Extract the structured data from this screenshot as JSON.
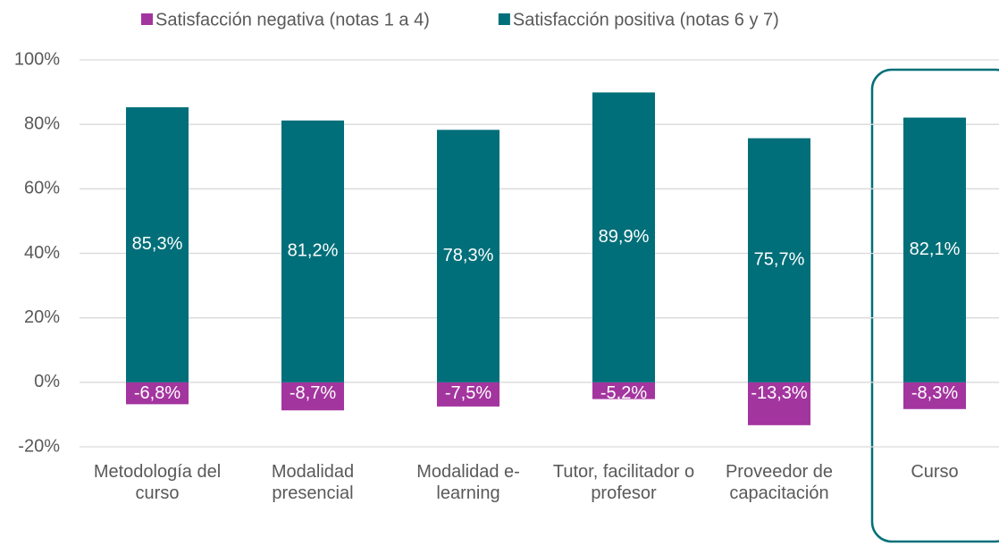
{
  "chart_data": {
    "type": "bar",
    "categories": [
      "Metodología del curso",
      "Modalidad presencial",
      "Modalidad e-learning",
      "Tutor, facilitador o profesor",
      "Proveedor de capacitación",
      "Curso"
    ],
    "series": [
      {
        "name": "Satisfacción negativa (notas 1 a 4)",
        "color": "#a3359f",
        "values": [
          -6.8,
          -8.7,
          -7.5,
          -5.2,
          -13.3,
          -8.3
        ],
        "value_labels": [
          "-6,8%",
          "-8,7%",
          "-7,5%",
          "-5,2%",
          "-13,3%",
          "-8,3%"
        ]
      },
      {
        "name": "Satisfacción positiva (notas 6 y 7)",
        "color": "#006f79",
        "values": [
          85.3,
          81.2,
          78.3,
          89.9,
          75.7,
          82.1
        ],
        "value_labels": [
          "85,3%",
          "81,2%",
          "78,3%",
          "89,9%",
          "75,7%",
          "82,1%"
        ]
      }
    ],
    "ylim": [
      -20,
      100
    ],
    "yticks": [
      {
        "value": -20,
        "label": "-20%"
      },
      {
        "value": 0,
        "label": "0%"
      },
      {
        "value": 20,
        "label": "20%"
      },
      {
        "value": 40,
        "label": "40%"
      },
      {
        "value": 60,
        "label": "60%"
      },
      {
        "value": 80,
        "label": "80%"
      },
      {
        "value": 100,
        "label": "100%"
      }
    ],
    "grid": true,
    "legend": "top"
  }
}
